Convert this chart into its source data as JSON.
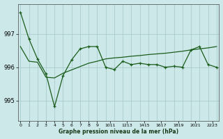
{
  "title": "Graphe pression niveau de la mer (hPa)",
  "background_color": "#cce8e8",
  "line_color": "#1a5c1a",
  "grid_color": "#aacccc",
  "x_labels": [
    "0",
    "1",
    "2",
    "3",
    "4",
    "5",
    "6",
    "7",
    "8",
    "9",
    "1011",
    "1213",
    "1415",
    "1617",
    "1819",
    "2021",
    "2223"
  ],
  "yticks": [
    995,
    996,
    997
  ],
  "ylim": [
    994.4,
    997.9
  ],
  "xlim": [
    -0.3,
    23.3
  ],
  "series1_x": [
    0,
    1,
    2,
    3,
    4,
    5,
    6,
    7,
    8,
    9,
    10,
    11,
    12,
    13,
    14,
    15,
    16,
    17,
    18,
    19,
    20,
    21,
    22,
    23
  ],
  "series1_y": [
    997.65,
    996.85,
    996.25,
    995.8,
    994.82,
    995.75,
    996.22,
    996.55,
    996.62,
    996.62,
    996.0,
    995.93,
    996.18,
    996.08,
    996.12,
    996.08,
    996.08,
    996.0,
    996.03,
    996.0,
    996.52,
    996.62,
    996.08,
    996.0
  ],
  "series2_x": [
    0,
    1,
    2,
    3,
    4,
    5,
    6,
    7,
    8,
    9,
    10,
    11,
    12,
    13,
    14,
    15,
    16,
    17,
    18,
    19,
    20,
    21,
    22,
    23
  ],
  "series2_y": [
    996.62,
    996.18,
    996.15,
    995.7,
    995.68,
    995.82,
    995.92,
    996.02,
    996.12,
    996.18,
    996.25,
    996.28,
    996.3,
    996.33,
    996.35,
    996.38,
    996.4,
    996.42,
    996.45,
    996.48,
    996.52,
    996.55,
    996.58,
    996.62
  ]
}
